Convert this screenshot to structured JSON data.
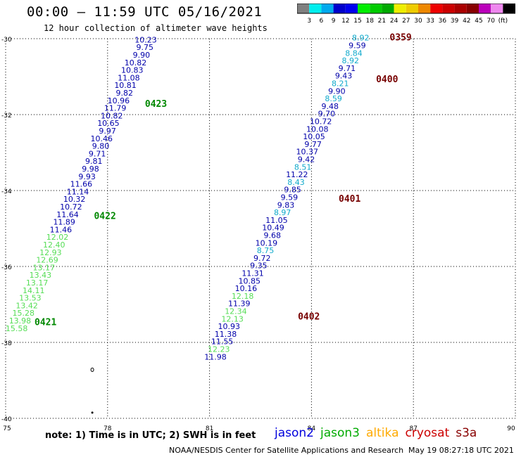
{
  "title": "00:00 – 11:59 UTC 05/16/2021",
  "subtitle": "12 hour collection of altimeter wave heights",
  "colorbar": {
    "colors": [
      "#808080",
      "#00eeee",
      "#00aaee",
      "#0000cc",
      "#0000ee",
      "#00ee00",
      "#00cc00",
      "#00aa00",
      "#eeee00",
      "#eecc00",
      "#ee8800",
      "#ee0000",
      "#cc0000",
      "#aa0000",
      "#880000",
      "#bb00bb",
      "#ee88ee",
      "#000000"
    ],
    "labels": [
      "3",
      "6",
      "9",
      "12",
      "15",
      "18",
      "21",
      "24",
      "27",
      "30",
      "33",
      "36",
      "39",
      "42",
      "45",
      "70",
      "(ft)"
    ]
  },
  "map": {
    "lon_range": [
      75,
      90
    ],
    "lat_range": [
      -40,
      -30
    ],
    "x_ticks": [
      "75",
      "78",
      "81",
      "84",
      "87",
      "90"
    ],
    "y_ticks": [
      "-30",
      "-32",
      "-34",
      "-36",
      "-38",
      "-40"
    ],
    "grid": "dotted"
  },
  "track_colors": {
    "dark": "#0000aa",
    "cyan": "#11aacc",
    "green": "#55dd55"
  },
  "time_label_colors": {
    "jason3": "#008800",
    "cryosat": "#770000"
  },
  "tracks": [
    {
      "satellite": "jason3",
      "points": [
        {
          "lon": 79.45,
          "lat": -30.1,
          "v": "10.23",
          "c": "dark"
        },
        {
          "lon": 79.35,
          "lat": -30.3,
          "v": "9.75",
          "c": "dark"
        },
        {
          "lon": 79.25,
          "lat": -30.5,
          "v": "9.90",
          "c": "dark"
        },
        {
          "lon": 79.15,
          "lat": -30.7,
          "v": "10.82",
          "c": "dark"
        },
        {
          "lon": 79.05,
          "lat": -30.9,
          "v": "10.83",
          "c": "dark"
        },
        {
          "lon": 78.95,
          "lat": -31.1,
          "v": "11.08",
          "c": "dark"
        },
        {
          "lon": 78.85,
          "lat": -31.3,
          "v": "10.81",
          "c": "dark"
        },
        {
          "lon": 78.75,
          "lat": -31.5,
          "v": "9.82",
          "c": "dark"
        },
        {
          "lon": 78.65,
          "lat": -31.7,
          "v": "10.96",
          "c": "dark"
        },
        {
          "lon": 78.55,
          "lat": -31.9,
          "v": "11.79",
          "c": "dark"
        },
        {
          "lon": 78.45,
          "lat": -32.1,
          "v": "10.82",
          "c": "dark"
        },
        {
          "lon": 78.35,
          "lat": -32.3,
          "v": "10.65",
          "c": "dark"
        },
        {
          "lon": 78.25,
          "lat": -32.5,
          "v": "9.97",
          "c": "dark"
        },
        {
          "lon": 78.15,
          "lat": -32.7,
          "v": "10.46",
          "c": "dark"
        },
        {
          "lon": 78.05,
          "lat": -32.9,
          "v": "9.80",
          "c": "dark"
        },
        {
          "lon": 77.95,
          "lat": -33.1,
          "v": "9.71",
          "c": "dark"
        },
        {
          "lon": 77.85,
          "lat": -33.3,
          "v": "9.81",
          "c": "dark"
        },
        {
          "lon": 77.75,
          "lat": -33.5,
          "v": "9.98",
          "c": "dark"
        },
        {
          "lon": 77.65,
          "lat": -33.7,
          "v": "9.93",
          "c": "dark"
        },
        {
          "lon": 77.55,
          "lat": -33.9,
          "v": "11.66",
          "c": "dark"
        },
        {
          "lon": 77.45,
          "lat": -34.1,
          "v": "11.14",
          "c": "dark"
        },
        {
          "lon": 77.35,
          "lat": -34.3,
          "v": "10.32",
          "c": "dark"
        },
        {
          "lon": 77.25,
          "lat": -34.5,
          "v": "10.72",
          "c": "dark"
        },
        {
          "lon": 77.15,
          "lat": -34.7,
          "v": "11.64",
          "c": "dark"
        },
        {
          "lon": 77.05,
          "lat": -34.9,
          "v": "11.89",
          "c": "dark"
        },
        {
          "lon": 76.95,
          "lat": -35.1,
          "v": "11.46",
          "c": "dark"
        },
        {
          "lon": 76.85,
          "lat": -35.3,
          "v": "12.02",
          "c": "green"
        },
        {
          "lon": 76.75,
          "lat": -35.5,
          "v": "12.40",
          "c": "green"
        },
        {
          "lon": 76.65,
          "lat": -35.7,
          "v": "12.93",
          "c": "green"
        },
        {
          "lon": 76.55,
          "lat": -35.9,
          "v": "12.69",
          "c": "green"
        },
        {
          "lon": 76.45,
          "lat": -36.1,
          "v": "13.17",
          "c": "green"
        },
        {
          "lon": 76.35,
          "lat": -36.3,
          "v": "13.43",
          "c": "green"
        },
        {
          "lon": 76.25,
          "lat": -36.5,
          "v": "13.17",
          "c": "green"
        },
        {
          "lon": 76.15,
          "lat": -36.7,
          "v": "14.11",
          "c": "green"
        },
        {
          "lon": 76.05,
          "lat": -36.9,
          "v": "13.53",
          "c": "green"
        },
        {
          "lon": 75.95,
          "lat": -37.1,
          "v": "13.42",
          "c": "green"
        },
        {
          "lon": 75.85,
          "lat": -37.3,
          "v": "15.28",
          "c": "green"
        },
        {
          "lon": 75.75,
          "lat": -37.5,
          "v": "13.98",
          "c": "green"
        },
        {
          "lon": 75.65,
          "lat": -37.7,
          "v": "15.58",
          "c": "green"
        }
      ],
      "time_labels": [
        {
          "lon": 79.1,
          "lat": -31.8,
          "t": "0423"
        },
        {
          "lon": 77.6,
          "lat": -34.75,
          "t": "0422"
        },
        {
          "lon": 75.85,
          "lat": -37.55,
          "t": "0421"
        }
      ]
    },
    {
      "satellite": "cryosat",
      "points": [
        {
          "lon": 85.7,
          "lat": -30.05,
          "v": "8.92",
          "c": "cyan"
        },
        {
          "lon": 85.6,
          "lat": -30.25,
          "v": "9.59",
          "c": "dark"
        },
        {
          "lon": 85.5,
          "lat": -30.45,
          "v": "8.84",
          "c": "cyan"
        },
        {
          "lon": 85.4,
          "lat": -30.65,
          "v": "8.92",
          "c": "cyan"
        },
        {
          "lon": 85.3,
          "lat": -30.85,
          "v": "9.71",
          "c": "dark"
        },
        {
          "lon": 85.2,
          "lat": -31.05,
          "v": "9.43",
          "c": "dark"
        },
        {
          "lon": 85.1,
          "lat": -31.25,
          "v": "8.21",
          "c": "cyan"
        },
        {
          "lon": 85.0,
          "lat": -31.45,
          "v": "9.90",
          "c": "dark"
        },
        {
          "lon": 84.9,
          "lat": -31.65,
          "v": "8.59",
          "c": "cyan"
        },
        {
          "lon": 84.8,
          "lat": -31.85,
          "v": "9.48",
          "c": "dark"
        },
        {
          "lon": 84.7,
          "lat": -32.05,
          "v": "9.70",
          "c": "dark"
        },
        {
          "lon": 84.6,
          "lat": -32.25,
          "v": "10.72",
          "c": "dark"
        },
        {
          "lon": 84.5,
          "lat": -32.45,
          "v": "10.08",
          "c": "dark"
        },
        {
          "lon": 84.4,
          "lat": -32.65,
          "v": "10.05",
          "c": "dark"
        },
        {
          "lon": 84.3,
          "lat": -32.85,
          "v": "9.77",
          "c": "dark"
        },
        {
          "lon": 84.2,
          "lat": -33.05,
          "v": "10.37",
          "c": "dark"
        },
        {
          "lon": 84.1,
          "lat": -33.25,
          "v": "9.42",
          "c": "dark"
        },
        {
          "lon": 84.0,
          "lat": -33.45,
          "v": "8.51",
          "c": "cyan"
        },
        {
          "lon": 83.9,
          "lat": -33.65,
          "v": "11.22",
          "c": "dark"
        },
        {
          "lon": 83.8,
          "lat": -33.85,
          "v": "8.43",
          "c": "cyan"
        },
        {
          "lon": 83.7,
          "lat": -34.05,
          "v": "9.85",
          "c": "dark"
        },
        {
          "lon": 83.6,
          "lat": -34.25,
          "v": "9.59",
          "c": "dark"
        },
        {
          "lon": 83.5,
          "lat": -34.45,
          "v": "9.83",
          "c": "dark"
        },
        {
          "lon": 83.4,
          "lat": -34.65,
          "v": "8.97",
          "c": "cyan"
        },
        {
          "lon": 83.3,
          "lat": -34.85,
          "v": "11.05",
          "c": "dark"
        },
        {
          "lon": 83.2,
          "lat": -35.05,
          "v": "10.49",
          "c": "dark"
        },
        {
          "lon": 83.1,
          "lat": -35.25,
          "v": "9.68",
          "c": "dark"
        },
        {
          "lon": 83.0,
          "lat": -35.45,
          "v": "10.19",
          "c": "dark"
        },
        {
          "lon": 82.9,
          "lat": -35.65,
          "v": "8.75",
          "c": "cyan"
        },
        {
          "lon": 82.8,
          "lat": -35.85,
          "v": "9.72",
          "c": "dark"
        },
        {
          "lon": 82.7,
          "lat": -36.05,
          "v": "9.35",
          "c": "dark"
        },
        {
          "lon": 82.6,
          "lat": -36.25,
          "v": "11.31",
          "c": "dark"
        },
        {
          "lon": 82.5,
          "lat": -36.45,
          "v": "10.85",
          "c": "dark"
        },
        {
          "lon": 82.4,
          "lat": -36.65,
          "v": "10.16",
          "c": "dark"
        },
        {
          "lon": 82.3,
          "lat": -36.85,
          "v": "12.18",
          "c": "green"
        },
        {
          "lon": 82.2,
          "lat": -37.05,
          "v": "11.39",
          "c": "dark"
        },
        {
          "lon": 82.1,
          "lat": -37.25,
          "v": "12.34",
          "c": "green"
        },
        {
          "lon": 82.0,
          "lat": -37.45,
          "v": "12.13",
          "c": "green"
        },
        {
          "lon": 81.9,
          "lat": -37.65,
          "v": "10.93",
          "c": "dark"
        },
        {
          "lon": 81.8,
          "lat": -37.85,
          "v": "11.38",
          "c": "dark"
        },
        {
          "lon": 81.7,
          "lat": -38.05,
          "v": "11.55",
          "c": "dark"
        },
        {
          "lon": 81.6,
          "lat": -38.25,
          "v": "12.23",
          "c": "green"
        },
        {
          "lon": 81.5,
          "lat": -38.45,
          "v": "11.98",
          "c": "dark"
        }
      ],
      "time_labels": [
        {
          "lon": 86.3,
          "lat": -30.05,
          "t": "0359"
        },
        {
          "lon": 85.9,
          "lat": -31.15,
          "t": "0400"
        },
        {
          "lon": 84.8,
          "lat": -34.3,
          "t": "0401"
        },
        {
          "lon": 83.6,
          "lat": -37.4,
          "t": "0402"
        }
      ]
    }
  ],
  "islands": [
    {
      "lon": 77.55,
      "lat": -38.72,
      "shape": "ring"
    },
    {
      "lon": 77.55,
      "lat": -39.85,
      "shape": "dot"
    }
  ],
  "note": "note:  1) Time is in UTC;  2) SWH is in feet",
  "legend": [
    {
      "label": "jason2",
      "color": "#0000dd"
    },
    {
      "label": "jason3",
      "color": "#00aa00"
    },
    {
      "label": "altika",
      "color": "#ffaa00"
    },
    {
      "label": "cryosat",
      "color": "#cc0000"
    },
    {
      "label": "s3a",
      "color": "#880000"
    }
  ],
  "credit": "NOAA/NESDIS Center for Satellite Applications and Research",
  "timestamp": "May 19 08:27:18 UTC 2021"
}
